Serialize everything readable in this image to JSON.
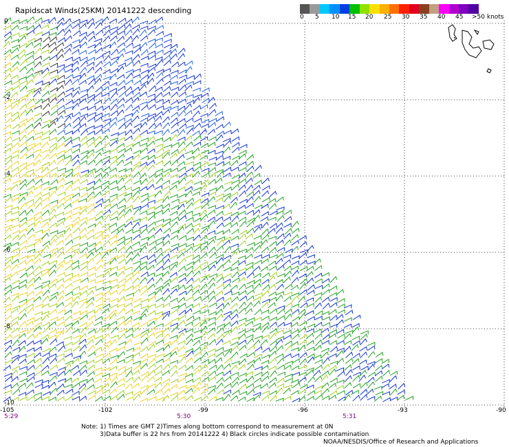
{
  "title": "Rapidscat Winds(25KM) 20141222 descending",
  "colorbar": {
    "colors": [
      "#555555",
      "#9a9a9a",
      "#00c8ff",
      "#0090ff",
      "#0040e0",
      "#00c000",
      "#90e000",
      "#ffe000",
      "#ffb000",
      "#ff7000",
      "#ff2000",
      "#e00020",
      "#8a4020",
      "#c0a080",
      "#ff00ff",
      "#b000d0",
      "#8000c0",
      "#5000a0"
    ],
    "labels": [
      "0",
      "5",
      "10",
      "15",
      "20",
      "25",
      "30",
      "35",
      "40",
      "45",
      ">50 knots"
    ]
  },
  "lat_labels": [
    "0",
    "-2",
    "-4",
    "-6",
    "-8",
    "-10"
  ],
  "lon_labels": [
    "-105",
    "-102",
    "-99",
    "-96",
    "-93",
    "-90"
  ],
  "times": [
    "5:29",
    "5:30",
    "5:31"
  ],
  "notes": [
    "Note: 1) Times are GMT 2)Times along bottom correspond to measurement at 0N",
    "3)Data buffer is 22 hrs from 20141222 4) Black circles indicate possible contamination",
    "NOAA/NESDIS/Office of Research and Applications"
  ]
}
